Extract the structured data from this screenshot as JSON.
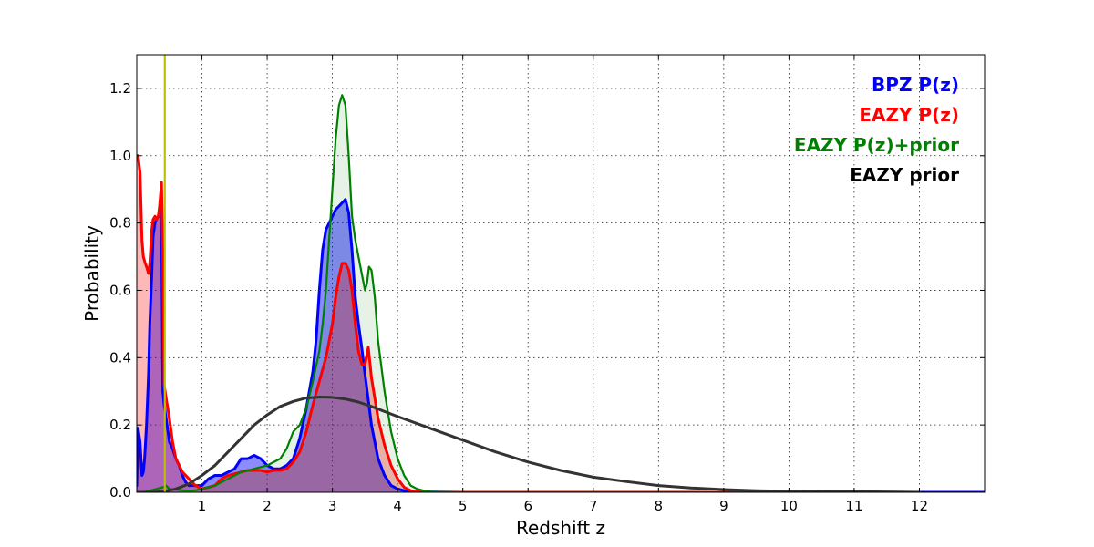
{
  "chart_data": {
    "type": "line",
    "title": "",
    "xlabel": "Redshift z",
    "ylabel": "Probability",
    "xlim": [
      0,
      13
    ],
    "ylim": [
      0,
      1.3
    ],
    "grid": true,
    "legend_position": "top-right",
    "x_ticks": [
      1,
      2,
      3,
      4,
      5,
      6,
      7,
      8,
      9,
      10,
      11,
      12
    ],
    "x_tick_labels": [
      "1",
      "2",
      "3",
      "4",
      "5",
      "6",
      "7",
      "8",
      "9",
      "10",
      "11",
      "12"
    ],
    "y_ticks": [
      0.0,
      0.2,
      0.4,
      0.6,
      0.8,
      1.0,
      1.2
    ],
    "y_tick_labels": [
      "0.0",
      "0.2",
      "0.4",
      "0.6",
      "0.8",
      "1.0",
      "1.2"
    ],
    "vertical_marker": {
      "x": 0.43,
      "color": "#bfbf00"
    },
    "series": [
      {
        "name": "BPZ P(z)",
        "color": "#0000ff",
        "fill": "#0000ff",
        "fill_opacity": 0.45,
        "line_width": 3,
        "x": [
          0.0,
          0.02,
          0.05,
          0.08,
          0.1,
          0.12,
          0.15,
          0.18,
          0.2,
          0.23,
          0.25,
          0.28,
          0.3,
          0.33,
          0.35,
          0.38,
          0.4,
          0.42,
          0.45,
          0.5,
          0.55,
          0.6,
          0.65,
          0.7,
          0.75,
          0.8,
          0.85,
          0.9,
          1.0,
          1.1,
          1.2,
          1.3,
          1.4,
          1.5,
          1.6,
          1.7,
          1.8,
          1.9,
          2.0,
          2.1,
          2.2,
          2.3,
          2.4,
          2.5,
          2.6,
          2.7,
          2.75,
          2.8,
          2.85,
          2.9,
          2.95,
          3.0,
          3.05,
          3.1,
          3.15,
          3.2,
          3.25,
          3.3,
          3.35,
          3.4,
          3.45,
          3.5,
          3.6,
          3.7,
          3.8,
          3.9,
          4.0,
          4.1,
          4.2,
          4.4,
          5.0,
          6.0,
          8.0,
          10.0,
          12.0,
          13.0
        ],
        "y": [
          0.02,
          0.19,
          0.15,
          0.05,
          0.06,
          0.1,
          0.2,
          0.35,
          0.5,
          0.65,
          0.76,
          0.8,
          0.81,
          0.82,
          0.82,
          0.85,
          0.3,
          0.26,
          0.22,
          0.15,
          0.13,
          0.1,
          0.08,
          0.05,
          0.03,
          0.02,
          0.02,
          0.02,
          0.02,
          0.04,
          0.05,
          0.05,
          0.06,
          0.07,
          0.1,
          0.1,
          0.11,
          0.1,
          0.08,
          0.07,
          0.07,
          0.08,
          0.1,
          0.16,
          0.25,
          0.36,
          0.45,
          0.6,
          0.72,
          0.78,
          0.8,
          0.82,
          0.84,
          0.85,
          0.86,
          0.87,
          0.83,
          0.72,
          0.58,
          0.5,
          0.43,
          0.35,
          0.2,
          0.1,
          0.05,
          0.02,
          0.01,
          0.005,
          0.002,
          0.001,
          0.0,
          0.0,
          0.0,
          0.0,
          0.0,
          0.0
        ]
      },
      {
        "name": "EAZY P(z)",
        "color": "#ff0000",
        "fill": "#ff0000",
        "fill_opacity": 0.28,
        "line_width": 3,
        "x": [
          0.0,
          0.02,
          0.05,
          0.08,
          0.1,
          0.13,
          0.15,
          0.18,
          0.2,
          0.23,
          0.25,
          0.28,
          0.3,
          0.33,
          0.35,
          0.38,
          0.4,
          0.42,
          0.45,
          0.5,
          0.55,
          0.6,
          0.65,
          0.7,
          0.75,
          0.8,
          0.85,
          0.9,
          1.0,
          1.1,
          1.2,
          1.3,
          1.4,
          1.5,
          1.6,
          1.7,
          1.8,
          1.9,
          2.0,
          2.1,
          2.2,
          2.3,
          2.4,
          2.5,
          2.6,
          2.7,
          2.8,
          2.9,
          3.0,
          3.05,
          3.1,
          3.15,
          3.2,
          3.25,
          3.3,
          3.35,
          3.4,
          3.45,
          3.5,
          3.55,
          3.6,
          3.7,
          3.8,
          3.9,
          4.0,
          4.1,
          4.2,
          4.3,
          4.4,
          4.5,
          5.0,
          6.0,
          8.0,
          10.0,
          12.0
        ],
        "y": [
          1.0,
          1.0,
          0.95,
          0.75,
          0.7,
          0.68,
          0.67,
          0.65,
          0.68,
          0.78,
          0.81,
          0.82,
          0.81,
          0.82,
          0.85,
          0.92,
          0.7,
          0.32,
          0.28,
          0.22,
          0.15,
          0.1,
          0.08,
          0.06,
          0.05,
          0.04,
          0.03,
          0.02,
          0.01,
          0.015,
          0.02,
          0.04,
          0.05,
          0.055,
          0.06,
          0.065,
          0.065,
          0.065,
          0.06,
          0.065,
          0.065,
          0.07,
          0.09,
          0.12,
          0.18,
          0.26,
          0.33,
          0.4,
          0.5,
          0.58,
          0.64,
          0.68,
          0.68,
          0.66,
          0.6,
          0.5,
          0.42,
          0.38,
          0.38,
          0.43,
          0.34,
          0.22,
          0.14,
          0.08,
          0.04,
          0.015,
          0.005,
          0.002,
          0.001,
          0.0,
          0.0,
          0.0,
          0.0,
          0.0,
          0.0
        ]
      },
      {
        "name": "EAZY P(z)+prior",
        "color": "#008000",
        "fill": "#008000",
        "fill_opacity": 0.1,
        "line_width": 2.2,
        "x": [
          0.0,
          0.1,
          0.2,
          0.3,
          0.4,
          0.45,
          0.5,
          0.6,
          0.7,
          0.8,
          0.9,
          1.0,
          1.2,
          1.4,
          1.6,
          1.8,
          2.0,
          2.2,
          2.3,
          2.4,
          2.5,
          2.6,
          2.7,
          2.8,
          2.85,
          2.9,
          2.95,
          3.0,
          3.05,
          3.1,
          3.15,
          3.2,
          3.25,
          3.3,
          3.35,
          3.4,
          3.45,
          3.5,
          3.53,
          3.56,
          3.6,
          3.65,
          3.7,
          3.8,
          3.9,
          4.0,
          4.1,
          4.2,
          4.3,
          4.4,
          4.5,
          4.6,
          5.0,
          6.0,
          8.0,
          10.0,
          12.0
        ],
        "y": [
          0.0,
          0.0,
          0.005,
          0.01,
          0.015,
          0.02,
          0.01,
          0.008,
          0.006,
          0.005,
          0.006,
          0.01,
          0.02,
          0.04,
          0.06,
          0.07,
          0.08,
          0.1,
          0.13,
          0.18,
          0.2,
          0.25,
          0.33,
          0.42,
          0.5,
          0.6,
          0.75,
          0.9,
          1.05,
          1.15,
          1.18,
          1.15,
          1.0,
          0.82,
          0.75,
          0.7,
          0.65,
          0.6,
          0.62,
          0.67,
          0.66,
          0.58,
          0.45,
          0.3,
          0.18,
          0.1,
          0.05,
          0.02,
          0.01,
          0.005,
          0.002,
          0.001,
          0.0,
          0.0,
          0.0,
          0.0,
          0.0
        ]
      },
      {
        "name": "EAZY prior",
        "color": "#333333",
        "fill": "none",
        "fill_opacity": 0,
        "line_width": 3,
        "x": [
          0.0,
          0.2,
          0.4,
          0.6,
          0.8,
          1.0,
          1.2,
          1.4,
          1.6,
          1.8,
          2.0,
          2.2,
          2.4,
          2.6,
          2.8,
          3.0,
          3.2,
          3.4,
          3.6,
          3.8,
          4.0,
          4.5,
          5.0,
          5.5,
          6.0,
          6.5,
          7.0,
          7.5,
          8.0,
          8.5,
          9.0,
          9.5,
          10.0,
          10.5,
          11.0,
          11.5,
          12.0
        ],
        "y": [
          0.0,
          0.0,
          0.002,
          0.01,
          0.025,
          0.05,
          0.08,
          0.12,
          0.16,
          0.2,
          0.23,
          0.255,
          0.27,
          0.28,
          0.283,
          0.282,
          0.277,
          0.268,
          0.255,
          0.24,
          0.225,
          0.19,
          0.155,
          0.12,
          0.09,
          0.065,
          0.045,
          0.032,
          0.02,
          0.013,
          0.008,
          0.005,
          0.003,
          0.002,
          0.0015,
          0.001,
          0.0
        ]
      }
    ]
  }
}
